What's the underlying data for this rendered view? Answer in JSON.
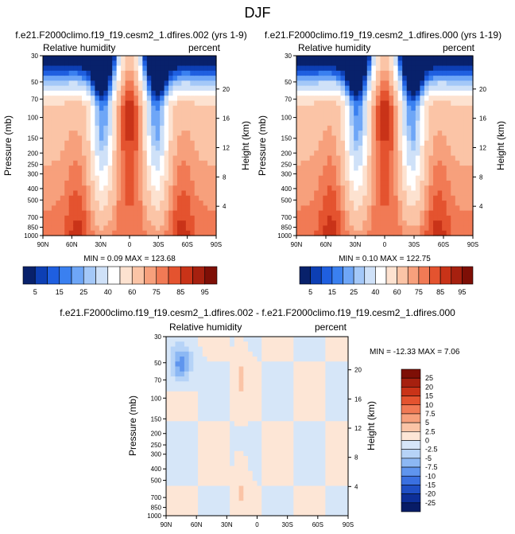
{
  "page_title": "DJF",
  "chart_data": [
    {
      "type": "heatmap",
      "title": "f.e21.F2000climo.f19_f19.cesm2_1.dfires.002 (yrs 1-9)",
      "left_subtitle": "Relative humidity",
      "right_subtitle": "percent",
      "xlabel": "",
      "ylabel": "Pressure (mb)",
      "y2label": "Height (km)",
      "x_ticks": [
        "90N",
        "60N",
        "30N",
        "0",
        "30S",
        "60S",
        "90S"
      ],
      "y_ticks": [
        "30",
        "50",
        "70",
        "100",
        "150",
        "200",
        "250",
        "300",
        "400",
        "500",
        "700",
        "850",
        "1000"
      ],
      "y2_ticks": [
        "20",
        "16",
        "12",
        "8",
        "4"
      ],
      "stats": "MIN =  0.09  MAX = 123.68",
      "min": 0.09,
      "max": 123.68,
      "colorbar": {
        "labels": [
          "5",
          "15",
          "25",
          "40",
          "60",
          "75",
          "85",
          "95"
        ],
        "colors": [
          "#08216b",
          "#0d3fb4",
          "#1f5fe0",
          "#3a80f0",
          "#6ea6f7",
          "#a4c8f8",
          "#cfe1f8",
          "#ffffff",
          "#fde2d0",
          "#fbc4a6",
          "#f7a07c",
          "#f17a55",
          "#e4532f",
          "#c93318",
          "#a6200f",
          "#7e0f06"
        ]
      }
    },
    {
      "type": "heatmap",
      "title": "f.e21.F2000climo.f19_f19.cesm2_1.dfires.000 (yrs 1-19)",
      "left_subtitle": "Relative humidity",
      "right_subtitle": "percent",
      "xlabel": "",
      "ylabel": "Pressure (mb)",
      "y2label": "Height (km)",
      "x_ticks": [
        "90N",
        "60N",
        "30N",
        "0",
        "30S",
        "60S",
        "90S"
      ],
      "y_ticks": [
        "30",
        "50",
        "70",
        "100",
        "150",
        "200",
        "250",
        "300",
        "400",
        "500",
        "700",
        "850",
        "1000"
      ],
      "y2_ticks": [
        "20",
        "16",
        "12",
        "8",
        "4"
      ],
      "stats": "MIN =  0.10  MAX = 122.75",
      "min": 0.1,
      "max": 122.75,
      "colorbar": {
        "labels": [
          "5",
          "15",
          "25",
          "40",
          "60",
          "75",
          "85",
          "95"
        ],
        "colors": [
          "#08216b",
          "#0d3fb4",
          "#1f5fe0",
          "#3a80f0",
          "#6ea6f7",
          "#a4c8f8",
          "#cfe1f8",
          "#ffffff",
          "#fde2d0",
          "#fbc4a6",
          "#f7a07c",
          "#f17a55",
          "#e4532f",
          "#c93318",
          "#a6200f",
          "#7e0f06"
        ]
      }
    },
    {
      "type": "heatmap",
      "title": "f.e21.F2000climo.f19_f19.cesm2_1.dfires.002 - f.e21.F2000climo.f19_f19.cesm2_1.dfires.000",
      "left_subtitle": "Relative humidity",
      "right_subtitle": "percent",
      "xlabel": "",
      "ylabel": "Pressure (mb)",
      "y2label": "Height (km)",
      "x_ticks": [
        "90N",
        "60N",
        "30N",
        "0",
        "30S",
        "60S",
        "90S"
      ],
      "y_ticks": [
        "30",
        "50",
        "70",
        "100",
        "150",
        "200",
        "250",
        "300",
        "400",
        "500",
        "700",
        "850",
        "1000"
      ],
      "y2_ticks": [
        "20",
        "16",
        "12",
        "8",
        "4"
      ],
      "stats": "MIN = -12.33  MAX =  7.06",
      "min": -12.33,
      "max": 7.06,
      "colorbar": {
        "labels": [
          "25",
          "20",
          "15",
          "10",
          "7.5",
          "5",
          "2.5",
          "0",
          "-2.5",
          "-5",
          "-7.5",
          "-10",
          "-15",
          "-20",
          "-25"
        ],
        "colors": [
          "#7e0f06",
          "#a6200f",
          "#c93318",
          "#e4532f",
          "#f17a55",
          "#f7a07c",
          "#fbc4a6",
          "#fde6d6",
          "#d6e6f8",
          "#b6d3f7",
          "#8cb8f4",
          "#5f95ee",
          "#3a70e0",
          "#1f4fc4",
          "#0d2f98",
          "#081c66"
        ]
      }
    }
  ]
}
